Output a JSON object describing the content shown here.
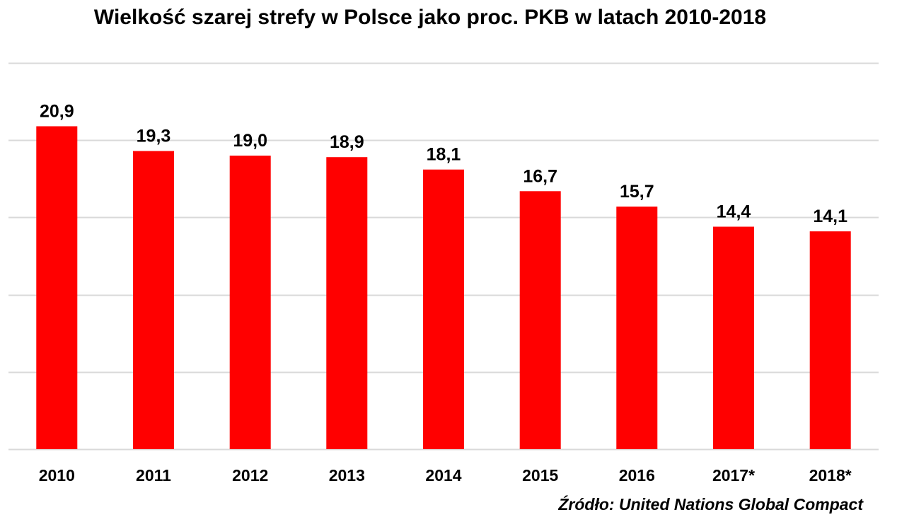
{
  "chart_data": {
    "type": "bar",
    "title": "Wielkość szarej strefy w Polsce jako proc. PKB w latach 2010-2018",
    "categories": [
      "2010",
      "2011",
      "2012",
      "2013",
      "2014",
      "2015",
      "2016",
      "2017*",
      "2018*"
    ],
    "values": [
      20.9,
      19.3,
      19.0,
      18.9,
      18.1,
      16.7,
      15.7,
      14.4,
      14.1
    ],
    "value_labels": [
      "20,9",
      "19,3",
      "19,0",
      "18,9",
      "18,1",
      "16,7",
      "15,7",
      "14,4",
      "14,1"
    ],
    "ylim": [
      0,
      25
    ],
    "gridlines": [
      0,
      5,
      10,
      15,
      20,
      25
    ],
    "grid": true,
    "legend": "none",
    "bar_color": "#ff0000",
    "grid_color": "#d9d9d9",
    "source": "Źródło: United Nations Global Compact"
  }
}
